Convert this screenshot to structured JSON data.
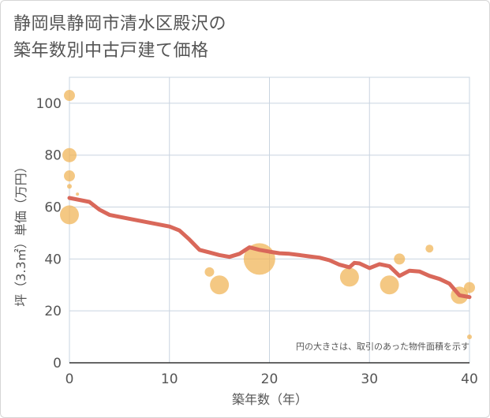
{
  "title_line1": "静岡県静岡市清水区殿沢の",
  "title_line2": "築年数別中古戸建て価格",
  "chart_data": {
    "type": "scatter",
    "xlabel": "築年数（年）",
    "ylabel": "坪（3.3㎡）単価（万円）",
    "xlim": [
      0,
      40
    ],
    "ylim": [
      0,
      110
    ],
    "xticks": [
      0,
      10,
      20,
      30,
      40
    ],
    "yticks": [
      0,
      20,
      40,
      60,
      80,
      100
    ],
    "grid": true,
    "note": "円の大きさは、取引のあった物件面積を示す",
    "colors": {
      "bubble": "#f0b65a",
      "line": "#d9685a",
      "grid": "#c9d4e0"
    },
    "bubbles": [
      {
        "x": 0,
        "y": 103,
        "r": 7
      },
      {
        "x": 0,
        "y": 80,
        "r": 9
      },
      {
        "x": 0,
        "y": 72,
        "r": 7
      },
      {
        "x": 0,
        "y": 68,
        "r": 3
      },
      {
        "x": 0,
        "y": 57,
        "r": 12
      },
      {
        "x": 0.8,
        "y": 65,
        "r": 2
      },
      {
        "x": 14,
        "y": 35,
        "r": 6
      },
      {
        "x": 15,
        "y": 30,
        "r": 12
      },
      {
        "x": 19,
        "y": 40,
        "r": 20
      },
      {
        "x": 28,
        "y": 33,
        "r": 12
      },
      {
        "x": 32,
        "y": 30,
        "r": 12
      },
      {
        "x": 33,
        "y": 40,
        "r": 7
      },
      {
        "x": 36,
        "y": 44,
        "r": 5
      },
      {
        "x": 39,
        "y": 26,
        "r": 11
      },
      {
        "x": 40,
        "y": 29,
        "r": 7
      },
      {
        "x": 40,
        "y": 10,
        "r": 3
      }
    ],
    "trend": [
      [
        0,
        63.5
      ],
      [
        2,
        62
      ],
      [
        3,
        59
      ],
      [
        4,
        57
      ],
      [
        6,
        55.5
      ],
      [
        8,
        54
      ],
      [
        10,
        52.5
      ],
      [
        11,
        51
      ],
      [
        12,
        47.5
      ],
      [
        13,
        43.5
      ],
      [
        14,
        42.5
      ],
      [
        15,
        41.5
      ],
      [
        16,
        40.8
      ],
      [
        17,
        42
      ],
      [
        18,
        44.5
      ],
      [
        19,
        43.5
      ],
      [
        20,
        42.8
      ],
      [
        21,
        42.2
      ],
      [
        22,
        42
      ],
      [
        23,
        41.5
      ],
      [
        24,
        41
      ],
      [
        25,
        40.5
      ],
      [
        26,
        39.5
      ],
      [
        27,
        37.8
      ],
      [
        28,
        36.8
      ],
      [
        28.5,
        38.5
      ],
      [
        29,
        38.3
      ],
      [
        30,
        36.5
      ],
      [
        31,
        38
      ],
      [
        32,
        37.2
      ],
      [
        33,
        33.5
      ],
      [
        34,
        35.5
      ],
      [
        35,
        35.2
      ],
      [
        36,
        33.5
      ],
      [
        37,
        32.3
      ],
      [
        38,
        30.5
      ],
      [
        39,
        26
      ],
      [
        40,
        25.3
      ]
    ]
  }
}
